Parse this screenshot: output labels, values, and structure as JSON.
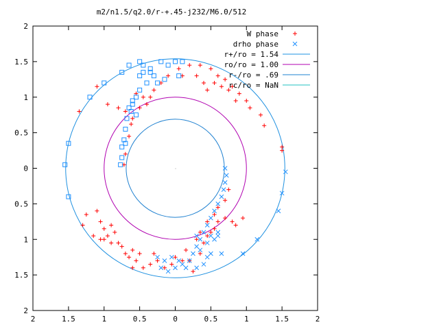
{
  "chart_data": {
    "type": "scatter",
    "title": "m2/n1.5/q2.0/r-+.45-j232/M6.0/512",
    "xlim": [
      -2,
      2
    ],
    "ylim": [
      -2,
      2
    ],
    "x_ticks": [
      -2,
      -1.5,
      -1,
      -0.5,
      0,
      0.5,
      1,
      1.5,
      2
    ],
    "y_ticks": [
      -2,
      -1.5,
      -1,
      -0.5,
      0,
      0.5,
      1,
      1.5,
      2
    ],
    "x_tick_labels": [
      "2",
      "1.5",
      "1",
      "0.5",
      "0",
      "0.5",
      "1",
      "1.5",
      "2"
    ],
    "y_tick_labels": [
      "2",
      "1.5",
      "1",
      "0.5",
      "0",
      "0.5",
      "1",
      "1.5",
      "2"
    ],
    "grid": false,
    "legend_position": "top-right",
    "colors": {
      "w_phase": "#ff0000",
      "drho_phase": "#1e90ff",
      "r_plus": "#1e90e0",
      "r_o": "#b000b0",
      "r_minus": "#1e80d0",
      "r_c": "#20c0c0"
    },
    "legend": [
      {
        "label": "W phase",
        "marker": "plus"
      },
      {
        "label": "drho phase",
        "marker": "cross"
      },
      {
        "label": "r+/ro = 1.54",
        "marker": "line"
      },
      {
        "label": "ro/ro = 1.00",
        "marker": "line"
      },
      {
        "label": "r-/ro = .69",
        "marker": "line"
      },
      {
        "label": "rc/ro = NaN",
        "marker": "line"
      }
    ],
    "circles": [
      {
        "name": "r+/ro",
        "radius": 1.54
      },
      {
        "name": "ro/ro",
        "radius": 1.0
      },
      {
        "name": "r-/ro",
        "radius": 0.69
      }
    ],
    "series": [
      {
        "name": "W phase",
        "marker": "plus",
        "points": [
          [
            -1.35,
            0.8
          ],
          [
            -1.1,
            1.15
          ],
          [
            -0.95,
            0.9
          ],
          [
            -0.8,
            0.85
          ],
          [
            -0.7,
            0.8
          ],
          [
            -0.6,
            0.7
          ],
          [
            -0.45,
            1.0
          ],
          [
            -0.3,
            1.1
          ],
          [
            -0.2,
            1.2
          ],
          [
            -0.1,
            1.3
          ],
          [
            0.05,
            1.4
          ],
          [
            0.2,
            1.45
          ],
          [
            0.35,
            1.45
          ],
          [
            0.5,
            1.4
          ],
          [
            0.6,
            1.3
          ],
          [
            0.7,
            1.25
          ],
          [
            0.8,
            1.15
          ],
          [
            0.9,
            1.05
          ],
          [
            1.0,
            0.95
          ],
          [
            1.05,
            0.85
          ],
          [
            1.2,
            0.75
          ],
          [
            1.25,
            0.6
          ],
          [
            1.5,
            0.3
          ],
          [
            1.5,
            0.25
          ],
          [
            -0.62,
            0.62
          ],
          [
            -0.65,
            0.45
          ],
          [
            -0.7,
            0.2
          ],
          [
            -0.72,
            0.05
          ],
          [
            -0.5,
            0.85
          ],
          [
            -0.4,
            0.9
          ],
          [
            -0.35,
            1.0
          ],
          [
            -0.55,
            1.05
          ],
          [
            0.1,
            1.3
          ],
          [
            0.3,
            1.3
          ],
          [
            0.4,
            1.2
          ],
          [
            0.45,
            1.1
          ],
          [
            0.55,
            1.2
          ],
          [
            0.65,
            1.15
          ],
          [
            0.75,
            1.1
          ],
          [
            0.85,
            0.95
          ],
          [
            -1.3,
            -0.8
          ],
          [
            -1.25,
            -0.65
          ],
          [
            -1.1,
            -0.6
          ],
          [
            -1.05,
            -0.75
          ],
          [
            -1.0,
            -0.85
          ],
          [
            -0.95,
            -0.95
          ],
          [
            -0.9,
            -0.8
          ],
          [
            -0.85,
            -0.9
          ],
          [
            -0.8,
            -1.05
          ],
          [
            -0.75,
            -1.1
          ],
          [
            -0.7,
            -1.2
          ],
          [
            -0.65,
            -1.25
          ],
          [
            -0.6,
            -1.15
          ],
          [
            -0.55,
            -1.3
          ],
          [
            -0.5,
            -1.2
          ],
          [
            -0.45,
            -1.4
          ],
          [
            -0.35,
            -1.35
          ],
          [
            -0.25,
            -1.3
          ],
          [
            -0.15,
            -1.4
          ],
          [
            -0.05,
            -1.35
          ],
          [
            0.1,
            -1.3
          ],
          [
            0.2,
            -1.3
          ],
          [
            0.25,
            -1.45
          ],
          [
            0.35,
            -1.2
          ],
          [
            0.4,
            -1.05
          ],
          [
            0.45,
            -0.95
          ],
          [
            0.5,
            -0.9
          ],
          [
            0.55,
            -0.85
          ],
          [
            0.6,
            -0.75
          ],
          [
            0.7,
            -0.7
          ],
          [
            0.8,
            -0.75
          ],
          [
            0.85,
            -0.8
          ],
          [
            0.95,
            -0.7
          ],
          [
            0.3,
            -1.0
          ],
          [
            0.35,
            -0.9
          ],
          [
            0.45,
            -0.75
          ],
          [
            0.55,
            -0.65
          ],
          [
            0.6,
            -0.55
          ],
          [
            0.7,
            -0.45
          ],
          [
            0.75,
            -0.3
          ],
          [
            -1.0,
            -1.0
          ],
          [
            -0.9,
            -1.05
          ],
          [
            -1.15,
            -0.95
          ],
          [
            -1.05,
            -1.0
          ],
          [
            -0.3,
            -1.2
          ],
          [
            -0.6,
            -1.4
          ],
          [
            0.15,
            -1.15
          ],
          [
            0.0,
            -1.25
          ]
        ]
      },
      {
        "name": "drho phase",
        "marker": "cross",
        "points": [
          [
            0.7,
            0.0
          ],
          [
            0.72,
            -0.1
          ],
          [
            0.7,
            -0.2
          ],
          [
            0.68,
            -0.3
          ],
          [
            0.65,
            -0.4
          ],
          [
            0.6,
            -0.5
          ],
          [
            0.55,
            -0.6
          ],
          [
            0.5,
            -0.7
          ],
          [
            0.45,
            -0.8
          ],
          [
            0.4,
            -0.9
          ],
          [
            0.35,
            -1.0
          ],
          [
            0.3,
            -1.1
          ],
          [
            0.25,
            -1.2
          ],
          [
            0.2,
            -1.3
          ],
          [
            0.1,
            -1.35
          ],
          [
            0.0,
            -1.4
          ],
          [
            -0.1,
            -1.45
          ],
          [
            -0.15,
            -1.3
          ],
          [
            -0.05,
            -1.25
          ],
          [
            0.05,
            -1.3
          ],
          [
            0.15,
            -1.4
          ],
          [
            0.3,
            -1.4
          ],
          [
            0.4,
            -1.35
          ],
          [
            0.45,
            -1.25
          ],
          [
            0.5,
            -1.2
          ],
          [
            0.55,
            -1.0
          ],
          [
            0.6,
            -0.9
          ],
          [
            0.5,
            -0.95
          ],
          [
            0.45,
            -1.05
          ],
          [
            0.35,
            -1.15
          ],
          [
            -0.2,
            -1.4
          ],
          [
            -0.25,
            -1.25
          ],
          [
            1.55,
            -0.05
          ],
          [
            1.5,
            -0.35
          ],
          [
            1.45,
            -0.6
          ],
          [
            1.15,
            -1.0
          ],
          [
            0.95,
            -1.2
          ],
          [
            0.65,
            -1.2
          ],
          [
            0.6,
            -0.95
          ],
          [
            0.3,
            -0.95
          ]
        ]
      },
      {
        "name": "drho phase (box)",
        "marker": "box",
        "points": [
          [
            -0.5,
            1.3
          ],
          [
            -0.45,
            1.45
          ],
          [
            -0.35,
            1.4
          ],
          [
            -0.2,
            1.5
          ],
          [
            -0.1,
            1.45
          ],
          [
            0.0,
            1.5
          ],
          [
            0.1,
            1.5
          ],
          [
            -0.3,
            1.3
          ],
          [
            -0.4,
            1.2
          ],
          [
            -0.5,
            1.1
          ],
          [
            -0.55,
            1.0
          ],
          [
            -0.6,
            0.95
          ],
          [
            -0.65,
            0.85
          ],
          [
            -0.68,
            0.7
          ],
          [
            -0.7,
            0.55
          ],
          [
            -0.72,
            0.4
          ],
          [
            -0.75,
            0.3
          ],
          [
            -0.75,
            0.15
          ],
          [
            -0.77,
            0.05
          ],
          [
            -0.6,
            0.9
          ],
          [
            -0.62,
            0.8
          ],
          [
            -0.55,
            0.75
          ],
          [
            -0.7,
            0.35
          ],
          [
            -0.25,
            1.2
          ],
          [
            -0.15,
            1.25
          ],
          [
            0.05,
            1.3
          ],
          [
            -0.45,
            1.35
          ],
          [
            -0.35,
            1.35
          ],
          [
            -1.55,
            0.05
          ],
          [
            -1.5,
            0.35
          ],
          [
            -1.5,
            -0.4
          ],
          [
            -1.2,
            1.0
          ],
          [
            -1.0,
            1.2
          ],
          [
            -0.75,
            1.35
          ],
          [
            -0.65,
            1.45
          ],
          [
            -0.5,
            1.5
          ]
        ]
      }
    ]
  }
}
